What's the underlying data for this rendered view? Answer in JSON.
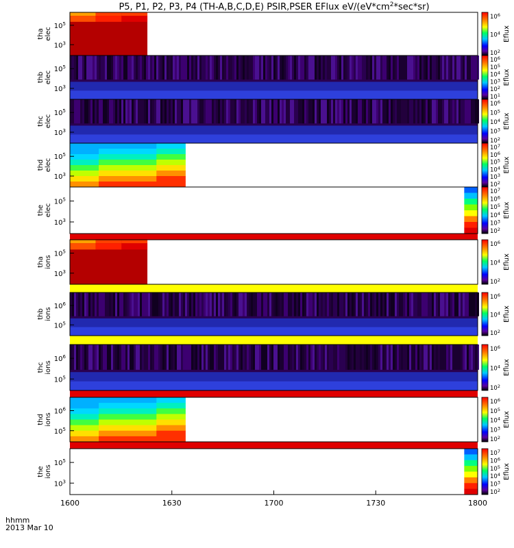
{
  "chart_data": {
    "type": "heatmap",
    "title": "P5, P1, P2, P3, P4 (TH-A,B,C,D,E) PSIR,PSER EFlux eV/(eV*cm²*sec*sr)",
    "title_main": "P5, P1, P2, P3, P4 (TH-A,B,C,D,E) PSIR,PSER EFlux eV/(eV*cm",
    "title_sup": "2",
    "title_end": "*sec*sr)",
    "x_ticks": [
      "1600",
      "1630",
      "1700",
      "1730",
      "1800"
    ],
    "x_label_top": "hhmm",
    "x_label_bottom": "2013 Mar 10",
    "colorbar_label": "Eflux",
    "panels": [
      {
        "probe": "tha",
        "species": "elec",
        "y_ticks": [
          "5",
          "3"
        ],
        "cb_ticks": [
          "6",
          "4",
          "2"
        ],
        "fill": "red_block",
        "fill_end": 0.19
      },
      {
        "probe": "thb",
        "species": "elec",
        "y_ticks": [
          "5",
          "3"
        ],
        "cb_ticks": [
          "6",
          "5",
          "4",
          "3",
          "2",
          "1"
        ],
        "fill": "noise_full"
      },
      {
        "probe": "thc",
        "species": "elec",
        "y_ticks": [
          "5",
          "3"
        ],
        "cb_ticks": [
          "6",
          "5",
          "4",
          "3",
          "2"
        ],
        "fill": "noise_full"
      },
      {
        "probe": "thd",
        "species": "elec",
        "y_ticks": [
          "5",
          "3"
        ],
        "cb_ticks": [
          "7",
          "6",
          "5",
          "4",
          "3",
          "2"
        ],
        "fill": "gradient_block",
        "fill_end": 0.283
      },
      {
        "probe": "the",
        "species": "elec",
        "y_ticks": [
          "5",
          "3"
        ],
        "cb_ticks": [
          "7",
          "6",
          "5",
          "4",
          "3",
          "2"
        ],
        "fill": "right_strip",
        "fill_start": 0.967
      },
      {
        "probe": "tha",
        "species": "ions",
        "y_ticks": [
          "5",
          "3"
        ],
        "cb_ticks": [
          "6",
          "4",
          "2"
        ],
        "fill": "red_block",
        "fill_end": 0.19
      },
      {
        "probe": "thb",
        "species": "ions",
        "y_ticks": [
          "6",
          "5"
        ],
        "cb_ticks": [
          "6",
          "4",
          "2"
        ],
        "fill": "noise_full"
      },
      {
        "probe": "thc",
        "species": "ions",
        "y_ticks": [
          "6",
          "5"
        ],
        "cb_ticks": [
          "6",
          "4",
          "2"
        ],
        "fill": "noise_full"
      },
      {
        "probe": "thd",
        "species": "ions",
        "y_ticks": [
          "6",
          "5"
        ],
        "cb_ticks": [
          "6",
          "5",
          "4",
          "3",
          "2"
        ],
        "fill": "gradient_block",
        "fill_end": 0.283
      },
      {
        "probe": "the",
        "species": "ions",
        "y_ticks": [
          "5",
          "3"
        ],
        "cb_ticks": [
          "7",
          "6",
          "5",
          "4",
          "3",
          "2"
        ],
        "fill": "right_strip",
        "fill_start": 0.967
      }
    ]
  }
}
